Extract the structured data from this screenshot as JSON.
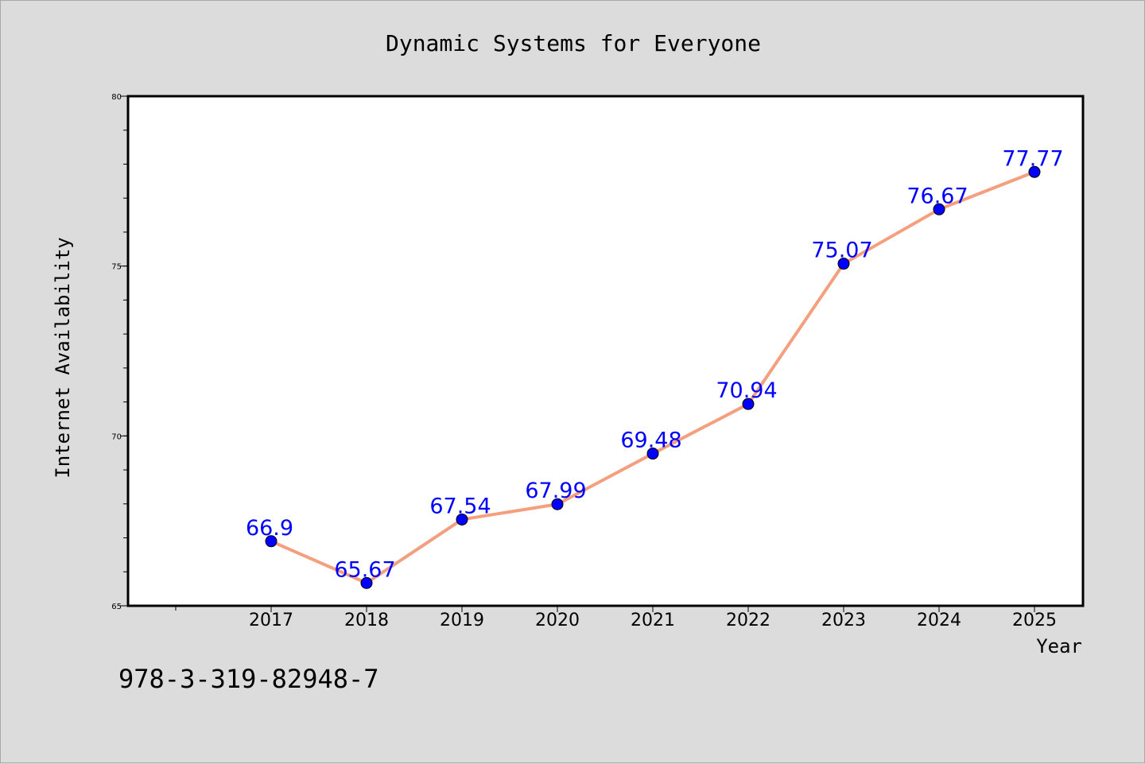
{
  "chart_data": {
    "type": "line",
    "title": "Dynamic Systems for Everyone",
    "xlabel": "Year",
    "ylabel": "Internet Availability",
    "categories": [
      "2017",
      "2018",
      "2019",
      "2020",
      "2021",
      "2022",
      "2023",
      "2024",
      "2025"
    ],
    "values": [
      66.9,
      65.67,
      67.54,
      67.99,
      69.48,
      70.94,
      75.07,
      76.67,
      77.77
    ],
    "data_labels": [
      "66.9",
      "65.67",
      "67.54",
      "67.99",
      "69.48",
      "70.94",
      "75.07",
      "76.67",
      "77.77"
    ],
    "ylim": [
      65,
      80
    ],
    "yticks": [
      "65",
      "70",
      "75",
      "80"
    ],
    "y_minor_step": 1,
    "grid": false,
    "legend": "none",
    "colors": {
      "line": "#f4a07f",
      "marker": "#0000ff",
      "label": "#0000ff",
      "background": "#dcdcdc",
      "plot_background": "#ffffff"
    }
  },
  "footer_text": "978-3-319-82948-7"
}
